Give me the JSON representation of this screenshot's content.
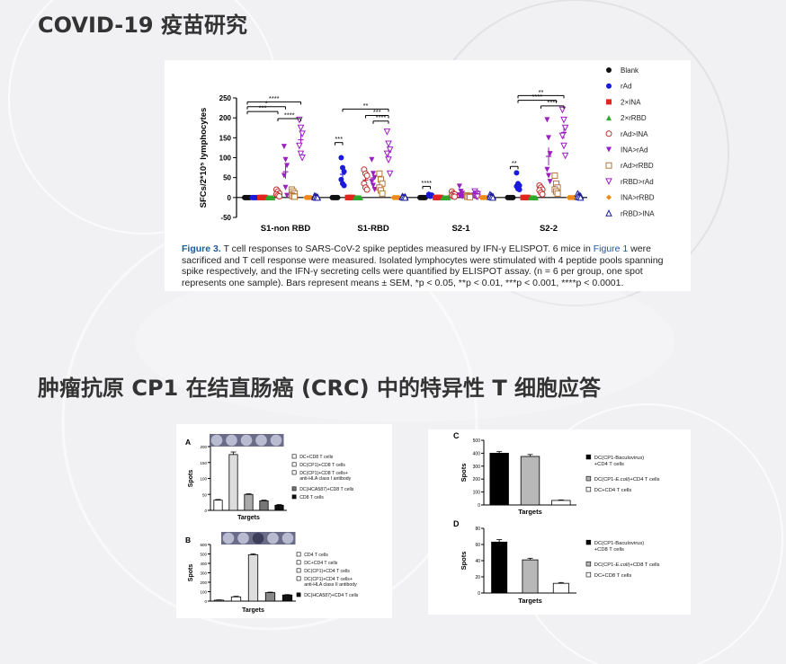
{
  "headings": {
    "covid": "COVID-19 疫苗研究",
    "crc": "肿瘤抗原 CP1 在结直肠癌 (CRC) 中的特异性 T 细胞应答"
  },
  "figure3": {
    "caption_label": "Figure 3.",
    "caption_part1": " T cell responses to SARS-CoV-2 spike peptides measured by IFN-γ ELISPOT. 6 mice in ",
    "caption_link": "Figure 1",
    "caption_part2": " were sacrificed and T cell response were measured. Isolated lymphocytes were stimulated with 4 peptide pools spanning spike respectively, and the IFN-γ secreting cells were quantified by ELISPOT assay. (n = 6 per group, one spot represents one sample). Bars represent means ± SEM, *p < 0.05, **p < 0.01, ***p < 0.001, ****p < 0.0001."
  },
  "chart_data": [
    {
      "id": "covid-elispot",
      "type": "scatter",
      "ylabel": "SFCs/2*10⁵ lymphocytes",
      "ylim": [
        -50,
        250
      ],
      "yticks": [
        "-50",
        "0",
        "50",
        "100",
        "150",
        "200",
        "250"
      ],
      "ytick_values": [
        -50,
        0,
        50,
        100,
        150,
        200,
        250
      ],
      "categories": [
        "S1-non RBD",
        "S1-RBD",
        "S2-1",
        "S2-2"
      ],
      "legend_position": "right",
      "series": [
        {
          "name": "Blank",
          "color": "#111111",
          "marker": "circle-filled",
          "values": [
            [
              0,
              0,
              0,
              0,
              0,
              0
            ],
            [
              0,
              0,
              0,
              0,
              0,
              0
            ],
            [
              0,
              0,
              0,
              0,
              0,
              0
            ],
            [
              0,
              0,
              0,
              0,
              0,
              0
            ]
          ]
        },
        {
          "name": "rAd",
          "color": "#1a1adb",
          "marker": "circle-filled",
          "values": [
            [
              0,
              0,
              0,
              0,
              0,
              0
            ],
            [
              100,
              75,
              65,
              45,
              35,
              30
            ],
            [
              5,
              4,
              6,
              8,
              3,
              5
            ],
            [
              62,
              35,
              30,
              28,
              22,
              20
            ]
          ]
        },
        {
          "name": "2×INA",
          "color": "#e0261f",
          "marker": "square-filled",
          "values": [
            [
              0,
              0,
              0,
              0,
              0,
              0
            ],
            [
              0,
              0,
              0,
              0,
              0,
              0
            ],
            [
              0,
              0,
              0,
              0,
              0,
              0
            ],
            [
              0,
              0,
              0,
              0,
              0,
              0
            ]
          ]
        },
        {
          "name": "2×rRBD",
          "color": "#2fa82c",
          "marker": "triangle-filled",
          "values": [
            [
              0,
              0,
              0,
              0,
              0,
              0
            ],
            [
              0,
              0,
              0,
              0,
              0,
              0
            ],
            [
              0,
              0,
              0,
              0,
              0,
              0
            ],
            [
              0,
              0,
              0,
              0,
              0,
              0
            ]
          ]
        },
        {
          "name": "rAd>INA",
          "color": "#c0292a",
          "marker": "circle-open",
          "values": [
            [
              20,
              15,
              10,
              8,
              5,
              3
            ],
            [
              70,
              60,
              55,
              35,
              25,
              20
            ],
            [
              15,
              10,
              8,
              5,
              3,
              2
            ],
            [
              30,
              25,
              20,
              18,
              12,
              8
            ]
          ]
        },
        {
          "name": "INA>rAd",
          "color": "#9b1fbf",
          "marker": "triangle-down-filled",
          "values": [
            [
              128,
              95,
              80,
              55,
              25,
              5
            ],
            [
              95,
              60,
              50,
              40,
              30,
              20
            ],
            [
              28,
              15,
              10,
              6,
              4,
              2
            ],
            [
              195,
              150,
              110,
              70,
              55,
              40
            ]
          ]
        },
        {
          "name": "rAd>rRBD",
          "color": "#b5773a",
          "marker": "square-open",
          "values": [
            [
              20,
              15,
              10,
              5,
              3,
              2
            ],
            [
              60,
              45,
              35,
              25,
              18,
              10
            ],
            [
              5,
              4,
              3,
              2,
              2,
              1
            ],
            [
              55,
              35,
              25,
              20,
              15,
              10
            ]
          ]
        },
        {
          "name": "rRBD>rAd",
          "color": "#9b1fbf",
          "marker": "triangle-down-open",
          "values": [
            [
              195,
              175,
              160,
              130,
              110,
              100
            ],
            [
              165,
              135,
              120,
              110,
              95,
              60
            ],
            [
              15,
              10,
              8,
              5,
              3,
              2
            ],
            [
              220,
              195,
              175,
              155,
              130,
              105
            ]
          ]
        },
        {
          "name": "INA>rRBD",
          "color": "#f08a16",
          "marker": "diamond-filled",
          "values": [
            [
              0,
              0,
              0,
              0,
              0,
              0
            ],
            [
              0,
              0,
              0,
              0,
              0,
              0
            ],
            [
              0,
              0,
              0,
              0,
              0,
              0
            ],
            [
              0,
              0,
              0,
              0,
              0,
              0
            ]
          ]
        },
        {
          "name": "rRBD>INA",
          "color": "#1d1d99",
          "marker": "triangle-open",
          "values": [
            [
              5,
              3,
              2,
              1,
              0,
              0
            ],
            [
              3,
              2,
              2,
              1,
              0,
              0
            ],
            [
              8,
              5,
              3,
              2,
              1,
              0
            ],
            [
              10,
              6,
              4,
              2,
              1,
              0
            ]
          ]
        }
      ],
      "significance": [
        {
          "group": 0,
          "label": "****",
          "from": 0,
          "to": 7,
          "y": 240
        },
        {
          "group": 0,
          "label": "*",
          "from": 0,
          "to": 5,
          "y": 228
        },
        {
          "group": 0,
          "label": "***",
          "from": 0,
          "to": 4,
          "y": 216
        },
        {
          "group": 0,
          "label": "****",
          "from": 4,
          "to": 7,
          "y": 198
        },
        {
          "group": 1,
          "label": "***",
          "from": 0,
          "to": 1,
          "y": 138
        },
        {
          "group": 1,
          "label": "**",
          "from": 1,
          "to": 7,
          "y": 222
        },
        {
          "group": 1,
          "label": "***",
          "from": 4,
          "to": 7,
          "y": 206
        },
        {
          "group": 1,
          "label": "****",
          "from": 5,
          "to": 7,
          "y": 192
        },
        {
          "group": 2,
          "label": "****",
          "from": 0,
          "to": 1,
          "y": 28
        },
        {
          "group": 3,
          "label": "**",
          "from": 0,
          "to": 1,
          "y": 78
        },
        {
          "group": 3,
          "label": "**",
          "from": 1,
          "to": 7,
          "y": 256
        },
        {
          "group": 3,
          "label": "****",
          "from": 1,
          "to": 6,
          "y": 244
        },
        {
          "group": 3,
          "label": "****",
          "from": 4,
          "to": 7,
          "y": 230
        }
      ]
    },
    {
      "id": "crc-A",
      "panel_label": "A",
      "type": "bar",
      "ylabel": "Spots",
      "xlabel": "Targets",
      "ylim": [
        0,
        200
      ],
      "yticks": [
        "0",
        "50",
        "100",
        "150",
        "200"
      ],
      "ytick_values": [
        0,
        50,
        100,
        150,
        200
      ],
      "values": [
        32,
        175,
        50,
        30,
        16
      ],
      "errors": [
        2,
        8,
        2,
        2,
        2
      ],
      "fills": [
        "#ffffff",
        "#dddddd",
        "#aaaaaa",
        "#777777",
        "#111111"
      ],
      "legend": [
        "DC+CD8 T cells",
        "DC(CP1)+CD8 T cells",
        "DC(CP1)+CD8 T cells+ anti-HLA class I antibody",
        "DC(HCA587)+CD8 T cells",
        "CD8 T cells"
      ],
      "legend_fills": [
        "#ffffff",
        "#ffffff",
        "#ffffff",
        "#777777",
        "#111111"
      ]
    },
    {
      "id": "crc-B",
      "panel_label": "B",
      "type": "bar",
      "ylabel": "Spots",
      "xlabel": "Targets",
      "ylim": [
        0,
        600
      ],
      "yticks": [
        "0",
        "100",
        "200",
        "300",
        "400",
        "500",
        "600"
      ],
      "ytick_values": [
        0,
        100,
        200,
        300,
        400,
        500,
        600
      ],
      "values": [
        10,
        45,
        490,
        90,
        65
      ],
      "errors": [
        3,
        6,
        12,
        5,
        4
      ],
      "fills": [
        "#ffffff",
        "#ffffff",
        "#dddddd",
        "#888888",
        "#111111"
      ],
      "legend": [
        "CD4 T cells",
        "DC+CD4 T cells",
        "DC(CP1)+CD4 T cells",
        "DC(CP1)+CD4 T cells+ anti-HLA class II antibody",
        "DC(HCA587)+CD4 T cells"
      ],
      "legend_fills": [
        "#ffffff",
        "#ffffff",
        "#ffffff",
        "#ffffff",
        "#111111"
      ]
    },
    {
      "id": "crc-C",
      "panel_label": "C",
      "type": "bar",
      "ylabel": "Spots",
      "xlabel": "Targets",
      "ylim": [
        0,
        500
      ],
      "yticks": [
        "0",
        "100",
        "200",
        "300",
        "400",
        "500"
      ],
      "ytick_values": [
        0,
        100,
        200,
        300,
        400,
        500
      ],
      "values": [
        400,
        375,
        35
      ],
      "errors": [
        12,
        15,
        4
      ],
      "fills": [
        "#000000",
        "#b8b8b8",
        "#ffffff"
      ],
      "legend_parts": [
        [
          "DC(CP1-Baculovirus)",
          "+CD4 T cells"
        ],
        [
          "DC(CP1-",
          "E.coli",
          ")+CD4 T cells"
        ],
        [
          "DC+CD4 T cells"
        ]
      ],
      "legend_fills": [
        "#000000",
        "#b8b8b8",
        "#ffffff"
      ]
    },
    {
      "id": "crc-D",
      "panel_label": "D",
      "type": "bar",
      "ylabel": "Spots",
      "xlabel": "Targets",
      "ylim": [
        0,
        80
      ],
      "yticks": [
        "0",
        "20",
        "40",
        "60",
        "80"
      ],
      "ytick_values": [
        0,
        20,
        40,
        60,
        80
      ],
      "values": [
        63,
        41,
        12
      ],
      "errors": [
        3,
        2,
        1
      ],
      "fills": [
        "#000000",
        "#b8b8b8",
        "#ffffff"
      ],
      "legend_parts": [
        [
          "DC(CP1-Baculovirus)",
          "+CD8 T cells"
        ],
        [
          "DC(CP1-",
          "E.coli",
          ")+CD8 T cells"
        ],
        [
          "DC+CD8 T cells"
        ]
      ],
      "legend_fills": [
        "#000000",
        "#b8b8b8",
        "#ffffff"
      ]
    }
  ]
}
